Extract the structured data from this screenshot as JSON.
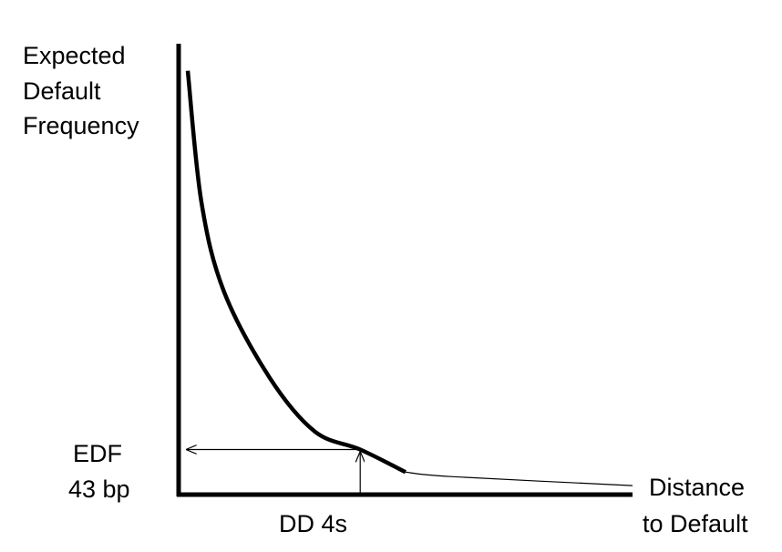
{
  "chart_data": {
    "type": "line",
    "title": "",
    "ylabel_lines": [
      "Expected",
      "Default",
      "Frequency"
    ],
    "xlabel_lines": [
      "Distance",
      "to Default"
    ],
    "grid": false,
    "axis_tick_values": false,
    "series": [
      {
        "style": "decreasing convex curve",
        "points": [
          {
            "x": 0.2,
            "y": 0.94
          },
          {
            "x": 0.5,
            "y": 0.65
          },
          {
            "x": 1.0,
            "y": 0.45
          },
          {
            "x": 2.0,
            "y": 0.26
          },
          {
            "x": 3.0,
            "y": 0.14
          },
          {
            "x": 4.0,
            "y": 0.1
          },
          {
            "x": 5.0,
            "y": 0.05
          },
          {
            "x": 6.0,
            "y": 0.04
          },
          {
            "x": 10.0,
            "y": 0.02
          }
        ]
      }
    ],
    "annotations": {
      "edf_lines": [
        "EDF",
        "43 bp"
      ],
      "dd_label": "DD 4s",
      "reference_point": {
        "x": 4.0,
        "y": 0.1
      }
    }
  }
}
